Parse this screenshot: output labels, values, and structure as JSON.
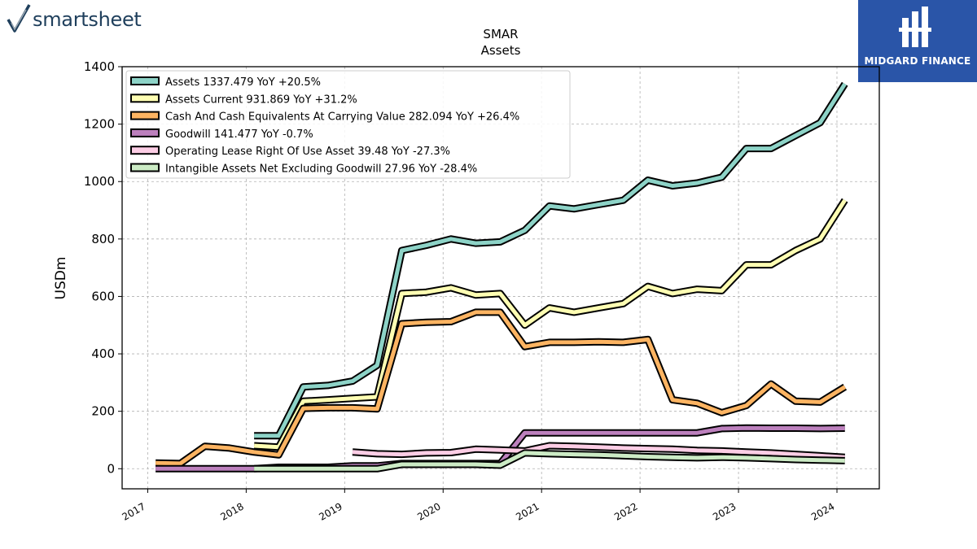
{
  "branding": {
    "left_logo": "smartsheet",
    "right_logo": "MIDGARD FINANCE",
    "right_logo_bg": "#2a55a8"
  },
  "chart_data": {
    "type": "line",
    "title": "SMAR",
    "subtitle": "Assets",
    "ylabel": "USDm",
    "xlabel": "",
    "ylim": [
      -70,
      1400
    ],
    "xlim": [
      2016.74,
      2024.43
    ],
    "yticks": [
      0,
      200,
      400,
      600,
      800,
      1000,
      1200,
      1400
    ],
    "xticks": [
      2017,
      2018,
      2019,
      2020,
      2021,
      2022,
      2023,
      2024
    ],
    "grid": true,
    "legend_position": "top-left",
    "series": [
      {
        "name": "Assets",
        "legend": "Assets  1337.479 YoY +20.5%",
        "color": "#8dd3c7",
        "x": [
          2018.08,
          2018.33,
          2018.58,
          2018.83,
          2019.08,
          2019.33,
          2019.58,
          2019.83,
          2020.08,
          2020.33,
          2020.58,
          2020.83,
          2021.08,
          2021.33,
          2021.58,
          2021.83,
          2022.08,
          2022.33,
          2022.58,
          2022.83,
          2023.08,
          2023.33,
          2023.58,
          2023.83,
          2024.08
        ],
        "y": [
          115,
          115,
          285,
          290,
          305,
          360,
          760,
          778,
          800,
          785,
          790,
          830,
          915,
          905,
          920,
          935,
          1005,
          985,
          995,
          1015,
          1115,
          1115,
          1160,
          1205,
          1340
        ]
      },
      {
        "name": "Assets Current",
        "legend": "Assets Current  931.869 YoY +31.2%",
        "color": "#ffffb3",
        "x": [
          2018.08,
          2018.33,
          2018.58,
          2018.83,
          2019.08,
          2019.33,
          2019.58,
          2019.83,
          2020.08,
          2020.33,
          2020.58,
          2020.83,
          2021.08,
          2021.33,
          2021.58,
          2021.83,
          2022.08,
          2022.33,
          2022.58,
          2022.83,
          2023.08,
          2023.33,
          2023.58,
          2023.83,
          2024.08
        ],
        "y": [
          80,
          75,
          235,
          240,
          245,
          250,
          610,
          615,
          630,
          605,
          610,
          500,
          560,
          545,
          560,
          575,
          635,
          610,
          625,
          620,
          710,
          710,
          760,
          800,
          935
        ]
      },
      {
        "name": "Cash And Cash Equivalents At Carrying Value",
        "legend": "Cash And Cash Equivalents At Carrying Value  282.094 YoY +26.4%",
        "color": "#fdb462",
        "x": [
          2017.08,
          2017.33,
          2017.58,
          2017.83,
          2018.08,
          2018.33,
          2018.58,
          2018.83,
          2019.08,
          2019.33,
          2019.58,
          2019.83,
          2020.08,
          2020.33,
          2020.58,
          2020.83,
          2021.08,
          2021.33,
          2021.58,
          2021.83,
          2022.08,
          2022.33,
          2022.58,
          2022.83,
          2023.08,
          2023.33,
          2023.58,
          2023.83,
          2024.08
        ],
        "y": [
          20,
          18,
          78,
          72,
          58,
          48,
          210,
          212,
          212,
          208,
          505,
          510,
          512,
          545,
          545,
          425,
          440,
          440,
          442,
          440,
          450,
          240,
          228,
          195,
          220,
          295,
          235,
          232,
          285
        ]
      },
      {
        "name": "Goodwill",
        "legend": "Goodwill  141.477 YoY -0.7%",
        "color": "#bc80bd",
        "x": [
          2017.08,
          2017.33,
          2017.58,
          2017.83,
          2018.08,
          2018.33,
          2018.58,
          2018.83,
          2019.08,
          2019.33,
          2019.58,
          2019.83,
          2020.08,
          2020.33,
          2020.58,
          2020.83,
          2021.08,
          2021.33,
          2021.58,
          2021.83,
          2022.08,
          2022.33,
          2022.58,
          2022.83,
          2023.08,
          2023.33,
          2023.58,
          2023.83,
          2024.08
        ],
        "y": [
          0,
          0,
          0,
          0,
          0,
          5,
          5,
          5,
          10,
          10,
          18,
          18,
          18,
          18,
          18,
          125,
          125,
          125,
          125,
          125,
          125,
          125,
          125,
          140,
          142,
          141,
          141,
          140,
          141
        ]
      },
      {
        "name": "Operating Lease Right Of Use Asset",
        "legend": "Operating Lease Right Of Use Asset  39.48 YoY -27.3%",
        "color": "#fccde5",
        "x": [
          2019.08,
          2019.33,
          2019.58,
          2019.83,
          2020.08,
          2020.33,
          2020.58,
          2020.83,
          2021.08,
          2021.33,
          2021.58,
          2021.83,
          2022.08,
          2022.33,
          2022.58,
          2022.83,
          2023.08,
          2023.33,
          2023.58,
          2023.83,
          2024.08
        ],
        "y": [
          58,
          52,
          50,
          55,
          56,
          68,
          65,
          62,
          80,
          78,
          75,
          72,
          70,
          68,
          64,
          62,
          58,
          55,
          50,
          45,
          40
        ]
      },
      {
        "name": "Intangible Assets Net Excluding Goodwill",
        "legend": "Intangible Assets Net Excluding Goodwill  27.96 YoY -28.4%",
        "color": "#ccebc5",
        "x": [
          2018.08,
          2018.33,
          2018.58,
          2018.83,
          2019.08,
          2019.33,
          2019.58,
          2019.83,
          2020.08,
          2020.33,
          2020.58,
          2020.83,
          2021.08,
          2021.33,
          2021.58,
          2021.83,
          2022.08,
          2022.33,
          2022.58,
          2022.83,
          2023.08,
          2023.33,
          2023.58,
          2023.83,
          2024.08
        ],
        "y": [
          0,
          0,
          0,
          0,
          0,
          0,
          15,
          15,
          15,
          15,
          12,
          55,
          52,
          50,
          48,
          45,
          42,
          40,
          38,
          40,
          38,
          35,
          32,
          30,
          28
        ]
      }
    ]
  }
}
